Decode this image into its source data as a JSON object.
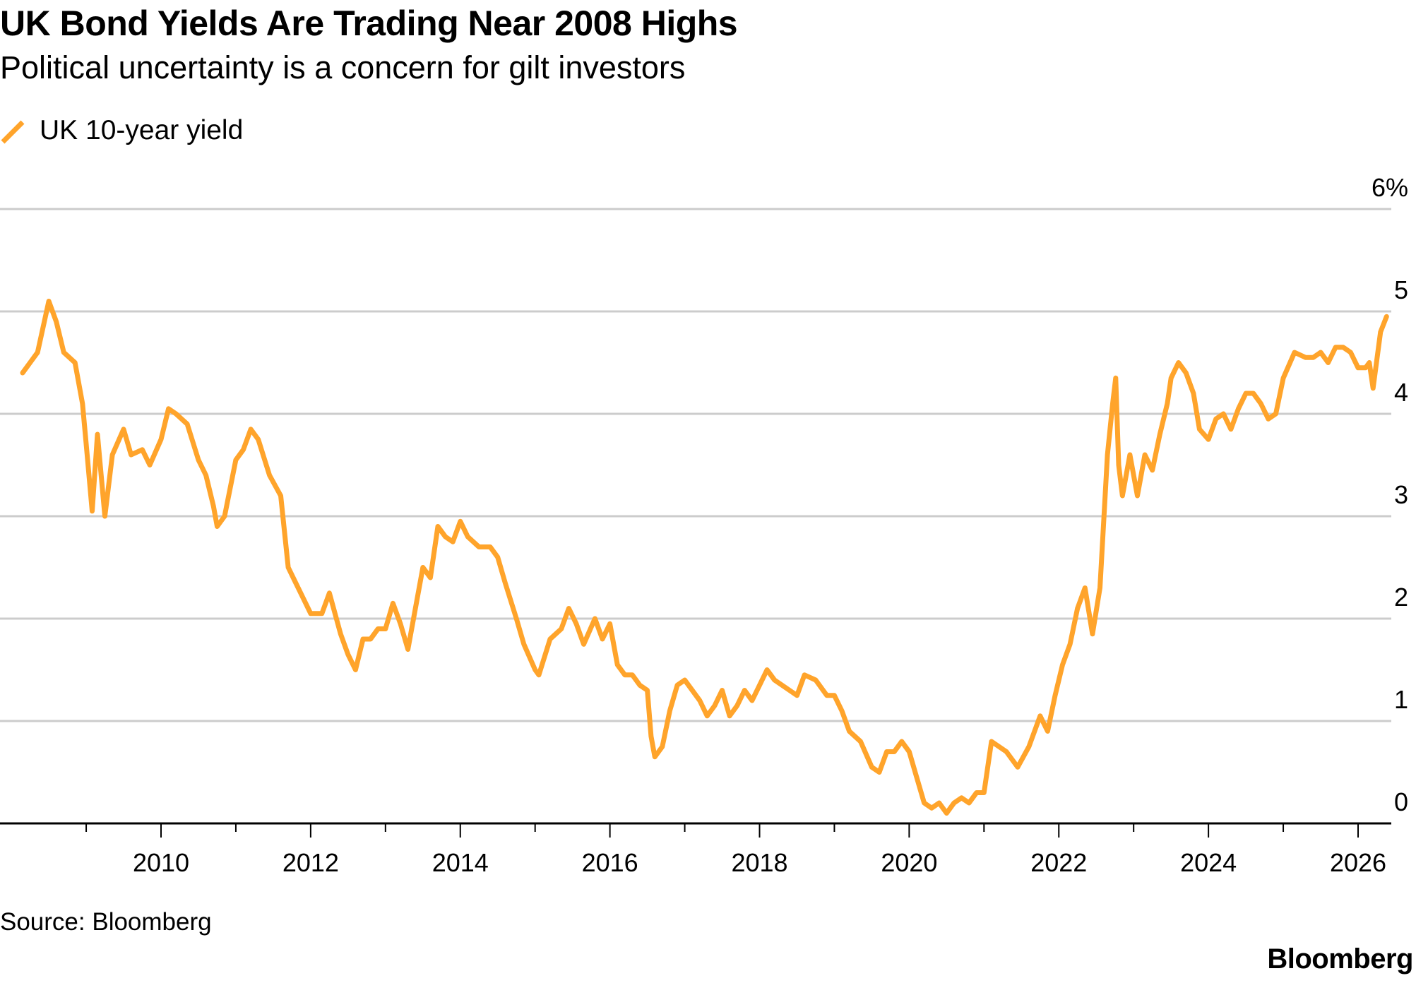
{
  "header": {
    "title": "UK Bond Yields Are Trading Near 2008 Highs",
    "subtitle": "Political uncertainty is a concern for gilt investors"
  },
  "footer": {
    "source": "Source: Bloomberg",
    "brand": "Bloomberg"
  },
  "colors": {
    "series": "#FFA42B",
    "grid": "#CCCCCC",
    "axis": "#000000"
  },
  "chart_data": {
    "type": "line",
    "title": "UK Bond Yields Are Trading Near 2008 Highs",
    "subtitle": "Political uncertainty is a concern for gilt investors",
    "xlabel": "",
    "ylabel": "",
    "xlim": [
      2008.0,
      2027.0
    ],
    "ylim": [
      0,
      6
    ],
    "x_ticks": [
      2010,
      2012,
      2014,
      2016,
      2018,
      2020,
      2022,
      2024,
      2026
    ],
    "x_tick_labels": [
      "2010",
      "2012",
      "2014",
      "2016",
      "2018",
      "2020",
      "2022",
      "2024",
      "2026"
    ],
    "x_minor_ticks": [
      2009,
      2011,
      2013,
      2015,
      2017,
      2019,
      2021,
      2023,
      2025
    ],
    "y_ticks": [
      0,
      1,
      2,
      3,
      4,
      5,
      6
    ],
    "y_tick_labels": [
      "0",
      "1",
      "2",
      "3",
      "4",
      "5",
      "6%"
    ],
    "grid": true,
    "legend_position": "top-left",
    "series": [
      {
        "name": "UK 10-year yield",
        "x": [
          2008.15,
          2008.35,
          2008.5,
          2008.6,
          2008.7,
          2008.85,
          2008.95,
          2009.0,
          2009.08,
          2009.15,
          2009.25,
          2009.35,
          2009.5,
          2009.6,
          2009.75,
          2009.85,
          2010.0,
          2010.1,
          2010.2,
          2010.35,
          2010.5,
          2010.6,
          2010.7,
          2010.75,
          2010.85,
          2011.0,
          2011.1,
          2011.2,
          2011.3,
          2011.45,
          2011.6,
          2011.7,
          2011.8,
          2011.9,
          2012.0,
          2012.15,
          2012.25,
          2012.4,
          2012.5,
          2012.6,
          2012.7,
          2012.8,
          2012.9,
          2013.0,
          2013.1,
          2013.2,
          2013.3,
          2013.4,
          2013.5,
          2013.6,
          2013.7,
          2013.8,
          2013.9,
          2014.0,
          2014.1,
          2014.25,
          2014.4,
          2014.5,
          2014.6,
          2014.75,
          2014.85,
          2015.0,
          2015.05,
          2015.2,
          2015.35,
          2015.45,
          2015.55,
          2015.65,
          2015.8,
          2015.9,
          2016.0,
          2016.1,
          2016.2,
          2016.3,
          2016.4,
          2016.5,
          2016.55,
          2016.6,
          2016.7,
          2016.8,
          2016.9,
          2017.0,
          2017.1,
          2017.2,
          2017.3,
          2017.4,
          2017.5,
          2017.6,
          2017.7,
          2017.8,
          2017.9,
          2018.0,
          2018.1,
          2018.2,
          2018.3,
          2018.4,
          2018.5,
          2018.6,
          2018.75,
          2018.9,
          2019.0,
          2019.1,
          2019.2,
          2019.35,
          2019.5,
          2019.6,
          2019.7,
          2019.8,
          2019.9,
          2020.0,
          2020.1,
          2020.2,
          2020.3,
          2020.4,
          2020.5,
          2020.6,
          2020.7,
          2020.8,
          2020.9,
          2021.0,
          2021.1,
          2021.2,
          2021.3,
          2021.45,
          2021.6,
          2021.75,
          2021.85,
          2021.95,
          2022.05,
          2022.15,
          2022.25,
          2022.35,
          2022.45,
          2022.55,
          2022.65,
          2022.72,
          2022.76,
          2022.8,
          2022.85,
          2022.95,
          2023.05,
          2023.15,
          2023.25,
          2023.35,
          2023.45,
          2023.5,
          2023.6,
          2023.7,
          2023.8,
          2023.88,
          2024.0,
          2024.1,
          2024.2,
          2024.3,
          2024.4,
          2024.5,
          2024.6,
          2024.7,
          2024.8,
          2024.9,
          2025.0,
          2025.15,
          2025.3,
          2025.4,
          2025.5,
          2025.6,
          2025.7,
          2025.8,
          2025.9,
          2026.0,
          2026.1,
          2026.15,
          2026.2,
          2026.3,
          2026.38
        ],
        "y": [
          4.4,
          4.6,
          5.1,
          4.9,
          4.6,
          4.5,
          4.1,
          3.7,
          3.05,
          3.8,
          3.0,
          3.6,
          3.85,
          3.6,
          3.65,
          3.5,
          3.75,
          4.05,
          4.0,
          3.9,
          3.55,
          3.4,
          3.1,
          2.9,
          3.0,
          3.55,
          3.65,
          3.85,
          3.75,
          3.4,
          3.2,
          2.5,
          2.35,
          2.2,
          2.05,
          2.05,
          2.25,
          1.85,
          1.65,
          1.5,
          1.8,
          1.8,
          1.9,
          1.9,
          2.15,
          1.95,
          1.7,
          2.1,
          2.5,
          2.4,
          2.9,
          2.8,
          2.75,
          2.95,
          2.8,
          2.7,
          2.7,
          2.6,
          2.35,
          2.0,
          1.75,
          1.5,
          1.45,
          1.8,
          1.9,
          2.1,
          1.95,
          1.75,
          2.0,
          1.8,
          1.95,
          1.55,
          1.45,
          1.45,
          1.35,
          1.3,
          0.85,
          0.65,
          0.75,
          1.1,
          1.35,
          1.4,
          1.3,
          1.2,
          1.05,
          1.15,
          1.3,
          1.05,
          1.15,
          1.3,
          1.2,
          1.35,
          1.5,
          1.4,
          1.35,
          1.3,
          1.25,
          1.45,
          1.4,
          1.25,
          1.25,
          1.1,
          0.9,
          0.8,
          0.55,
          0.5,
          0.7,
          0.7,
          0.8,
          0.7,
          0.45,
          0.2,
          0.15,
          0.2,
          0.1,
          0.2,
          0.25,
          0.2,
          0.3,
          0.3,
          0.8,
          0.75,
          0.7,
          0.55,
          0.75,
          1.05,
          0.9,
          1.25,
          1.55,
          1.75,
          2.1,
          2.3,
          1.85,
          2.3,
          3.6,
          4.1,
          4.35,
          3.5,
          3.2,
          3.6,
          3.2,
          3.6,
          3.45,
          3.8,
          4.1,
          4.35,
          4.5,
          4.4,
          4.2,
          3.85,
          3.75,
          3.95,
          4.0,
          3.85,
          4.05,
          4.2,
          4.2,
          4.1,
          3.95,
          4.0,
          4.35,
          4.6,
          4.55,
          4.55,
          4.6,
          4.5,
          4.65,
          4.65,
          4.6,
          4.45,
          4.45,
          4.5,
          4.25,
          4.8,
          4.95
        ]
      }
    ]
  }
}
